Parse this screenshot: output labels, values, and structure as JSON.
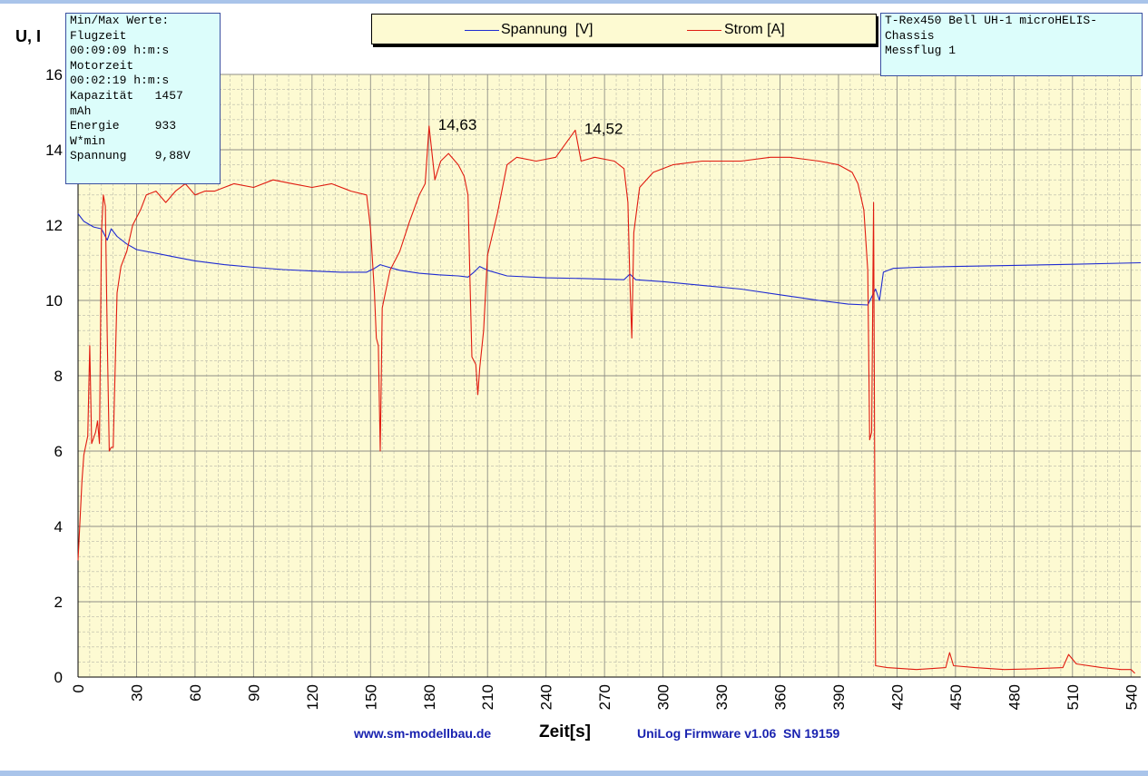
{
  "chart_data": {
    "type": "line",
    "xlabel": "Zeit[s]",
    "ylabel": "U, I",
    "xlim": [
      0,
      545
    ],
    "ylim": [
      0,
      16
    ],
    "x_ticks": [
      0,
      30,
      60,
      90,
      120,
      150,
      180,
      210,
      240,
      270,
      300,
      330,
      360,
      390,
      420,
      450,
      480,
      510,
      540
    ],
    "y_ticks": [
      0,
      2,
      4,
      6,
      8,
      10,
      12,
      14,
      16
    ],
    "grid": true,
    "legend_position": "top",
    "series": [
      {
        "name": "Spannung  [V]",
        "color": "#1f2bd1",
        "points": [
          [
            0,
            12.3
          ],
          [
            3,
            12.1
          ],
          [
            8,
            11.95
          ],
          [
            12,
            11.9
          ],
          [
            15,
            11.6
          ],
          [
            17,
            11.9
          ],
          [
            20,
            11.7
          ],
          [
            25,
            11.5
          ],
          [
            30,
            11.35
          ],
          [
            40,
            11.25
          ],
          [
            50,
            11.15
          ],
          [
            60,
            11.05
          ],
          [
            75,
            10.95
          ],
          [
            90,
            10.88
          ],
          [
            105,
            10.82
          ],
          [
            120,
            10.78
          ],
          [
            135,
            10.75
          ],
          [
            148,
            10.75
          ],
          [
            152,
            10.85
          ],
          [
            155,
            10.95
          ],
          [
            158,
            10.9
          ],
          [
            165,
            10.8
          ],
          [
            175,
            10.72
          ],
          [
            185,
            10.68
          ],
          [
            195,
            10.65
          ],
          [
            200,
            10.62
          ],
          [
            203,
            10.75
          ],
          [
            206,
            10.9
          ],
          [
            210,
            10.8
          ],
          [
            220,
            10.65
          ],
          [
            240,
            10.6
          ],
          [
            260,
            10.58
          ],
          [
            280,
            10.55
          ],
          [
            283,
            10.7
          ],
          [
            286,
            10.55
          ],
          [
            300,
            10.5
          ],
          [
            320,
            10.4
          ],
          [
            340,
            10.3
          ],
          [
            360,
            10.15
          ],
          [
            380,
            10.0
          ],
          [
            395,
            9.9
          ],
          [
            405,
            9.88
          ],
          [
            409,
            10.3
          ],
          [
            411,
            10.0
          ],
          [
            413,
            10.75
          ],
          [
            418,
            10.85
          ],
          [
            430,
            10.88
          ],
          [
            450,
            10.9
          ],
          [
            480,
            10.93
          ],
          [
            510,
            10.96
          ],
          [
            545,
            11.0
          ]
        ]
      },
      {
        "name": "Strom [A]",
        "color": "#e01b10",
        "points": [
          [
            0,
            3.1
          ],
          [
            2,
            5.2
          ],
          [
            3,
            5.9
          ],
          [
            5,
            6.4
          ],
          [
            6,
            8.8
          ],
          [
            7,
            6.2
          ],
          [
            9,
            6.5
          ],
          [
            10,
            6.8
          ],
          [
            11,
            6.2
          ],
          [
            12,
            11.8
          ],
          [
            13,
            12.8
          ],
          [
            14,
            12.5
          ],
          [
            15,
            9.0
          ],
          [
            16,
            6.0
          ],
          [
            17,
            6.1
          ],
          [
            18,
            6.1
          ],
          [
            20,
            10.2
          ],
          [
            22,
            10.9
          ],
          [
            25,
            11.3
          ],
          [
            28,
            12.0
          ],
          [
            32,
            12.4
          ],
          [
            35,
            12.8
          ],
          [
            40,
            12.9
          ],
          [
            45,
            12.6
          ],
          [
            50,
            12.9
          ],
          [
            55,
            13.1
          ],
          [
            60,
            12.8
          ],
          [
            65,
            12.9
          ],
          [
            70,
            12.9
          ],
          [
            75,
            13.0
          ],
          [
            80,
            13.1
          ],
          [
            90,
            13.0
          ],
          [
            100,
            13.2
          ],
          [
            110,
            13.1
          ],
          [
            120,
            13.0
          ],
          [
            130,
            13.1
          ],
          [
            140,
            12.9
          ],
          [
            148,
            12.8
          ],
          [
            150,
            11.9
          ],
          [
            152,
            10.2
          ],
          [
            153,
            9.0
          ],
          [
            154,
            8.8
          ],
          [
            155,
            6.0
          ],
          [
            156,
            9.8
          ],
          [
            160,
            10.8
          ],
          [
            165,
            11.3
          ],
          [
            170,
            12.1
          ],
          [
            175,
            12.8
          ],
          [
            178,
            13.1
          ],
          [
            180,
            14.63
          ],
          [
            183,
            13.2
          ],
          [
            186,
            13.7
          ],
          [
            190,
            13.9
          ],
          [
            195,
            13.6
          ],
          [
            198,
            13.3
          ],
          [
            200,
            12.8
          ],
          [
            201,
            10.5
          ],
          [
            202,
            8.5
          ],
          [
            204,
            8.3
          ],
          [
            205,
            7.5
          ],
          [
            206,
            8.2
          ],
          [
            208,
            9.2
          ],
          [
            210,
            11.2
          ],
          [
            215,
            12.3
          ],
          [
            220,
            13.6
          ],
          [
            225,
            13.8
          ],
          [
            235,
            13.7
          ],
          [
            245,
            13.8
          ],
          [
            255,
            14.52
          ],
          [
            258,
            13.7
          ],
          [
            265,
            13.8
          ],
          [
            275,
            13.7
          ],
          [
            280,
            13.5
          ],
          [
            282,
            12.6
          ],
          [
            283,
            10.5
          ],
          [
            284,
            9.0
          ],
          [
            285,
            11.8
          ],
          [
            288,
            13.0
          ],
          [
            295,
            13.4
          ],
          [
            305,
            13.6
          ],
          [
            320,
            13.7
          ],
          [
            340,
            13.7
          ],
          [
            355,
            13.8
          ],
          [
            365,
            13.8
          ],
          [
            380,
            13.7
          ],
          [
            390,
            13.6
          ],
          [
            397,
            13.4
          ],
          [
            400,
            13.1
          ],
          [
            403,
            12.4
          ],
          [
            405,
            10.8
          ],
          [
            406,
            6.3
          ],
          [
            407,
            6.5
          ],
          [
            408,
            12.6
          ],
          [
            409,
            0.3
          ],
          [
            415,
            0.25
          ],
          [
            430,
            0.2
          ],
          [
            445,
            0.25
          ],
          [
            447,
            0.65
          ],
          [
            449,
            0.3
          ],
          [
            460,
            0.25
          ],
          [
            475,
            0.2
          ],
          [
            490,
            0.22
          ],
          [
            505,
            0.25
          ],
          [
            508,
            0.6
          ],
          [
            512,
            0.35
          ],
          [
            525,
            0.25
          ],
          [
            535,
            0.2
          ],
          [
            540,
            0.2
          ],
          [
            542,
            0.1
          ]
        ]
      }
    ],
    "annotations": [
      {
        "text": "14,63",
        "x": 180,
        "y": 14.63
      },
      {
        "text": "14,52",
        "x": 255,
        "y": 14.52
      }
    ]
  },
  "stats_box": {
    "lines": [
      "Min/Max Werte:",
      "Flugzeit",
      "00:09:09 h:m:s",
      "Motorzeit",
      "00:02:19 h:m:s",
      "Kapazität   1457",
      "mAh",
      "Energie     933",
      "W*min",
      "Spannung    9,88V"
    ]
  },
  "title_box": {
    "lines": [
      "T-Rex450 Bell UH-1 microHELIS-",
      "Chassis",
      "Messflug 1"
    ]
  },
  "legend": {
    "spannung_label": "Spannung  [V]",
    "strom_label": "Strom [A]"
  },
  "footer": {
    "website": "www.sm-modellbau.de",
    "firmware": "UniLog Firmware v1.06  SN 19159"
  },
  "colors": {
    "plot_background": "#fdfad2",
    "grid": "#b8b8a8",
    "spannung": "#1f2bd1",
    "strom": "#e01b10",
    "frame": "#a9c4ea"
  }
}
